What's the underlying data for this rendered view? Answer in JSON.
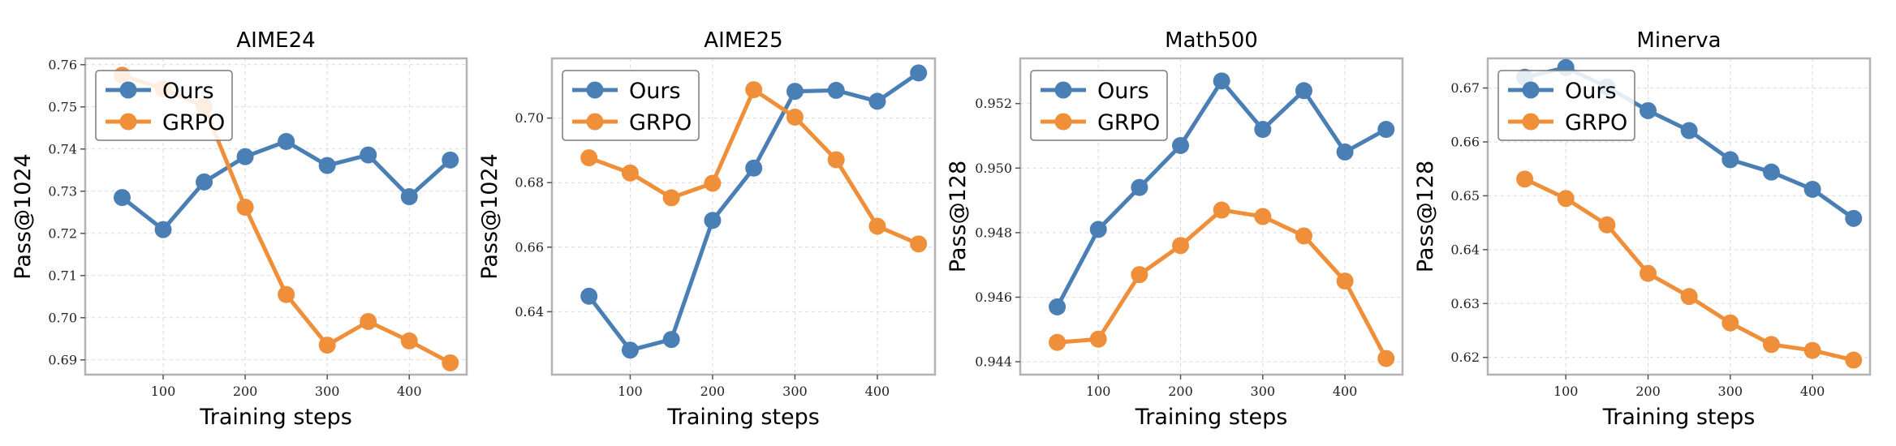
{
  "chart_data": [
    {
      "type": "line",
      "title": "AIME24",
      "xlabel": "Training steps",
      "ylabel": "Pass@1024",
      "x": [
        50,
        100,
        150,
        200,
        250,
        300,
        350,
        400,
        450
      ],
      "xlim": [
        5,
        470
      ],
      "ylim": [
        0.6865,
        0.7615
      ],
      "xticks": [
        100,
        200,
        300,
        400
      ],
      "yticks": [
        0.69,
        0.7,
        0.71,
        0.72,
        0.73,
        0.74,
        0.75,
        0.76
      ],
      "xtick_labels": [
        "100",
        "200",
        "300",
        "400"
      ],
      "ytick_labels": [
        "0.69",
        "0.70",
        "0.71",
        "0.72",
        "0.73",
        "0.74",
        "0.75",
        "0.76"
      ],
      "grid": true,
      "legend_position": "top-left",
      "series": [
        {
          "name": "Ours",
          "color": "#4a7fb5",
          "values": [
            0.7285,
            0.7209,
            0.7322,
            0.7382,
            0.7418,
            0.7361,
            0.7386,
            0.7287,
            0.7374
          ]
        },
        {
          "name": "GRPO",
          "color": "#ef8f3a",
          "values": [
            0.7575,
            0.7543,
            0.7501,
            0.7262,
            0.7055,
            0.6935,
            0.6991,
            0.6945,
            0.6893
          ]
        }
      ]
    },
    {
      "type": "line",
      "title": "AIME25",
      "xlabel": "Training steps",
      "ylabel": "Pass@1024",
      "x": [
        50,
        100,
        150,
        200,
        250,
        300,
        350,
        400,
        450
      ],
      "xlim": [
        5,
        470
      ],
      "ylim": [
        0.6205,
        0.7185
      ],
      "xticks": [
        100,
        200,
        300,
        400
      ],
      "yticks": [
        0.64,
        0.66,
        0.68,
        0.7
      ],
      "xtick_labels": [
        "100",
        "200",
        "300",
        "400"
      ],
      "ytick_labels": [
        "0.64",
        "0.66",
        "0.68",
        "0.70"
      ],
      "grid": true,
      "legend_position": "top-left",
      "series": [
        {
          "name": "Ours",
          "color": "#4a7fb5",
          "values": [
            0.6448,
            0.6281,
            0.6314,
            0.6683,
            0.6845,
            0.7083,
            0.7086,
            0.7052,
            0.714
          ]
        },
        {
          "name": "GRPO",
          "color": "#ef8f3a",
          "values": [
            0.6877,
            0.683,
            0.6753,
            0.6798,
            0.7088,
            0.7003,
            0.6871,
            0.6665,
            0.661
          ]
        }
      ]
    },
    {
      "type": "line",
      "title": "Math500",
      "xlabel": "Training steps",
      "ylabel": "Pass@128",
      "x": [
        50,
        100,
        150,
        200,
        250,
        300,
        350,
        400,
        450
      ],
      "xlim": [
        5,
        470
      ],
      "ylim": [
        0.9436,
        0.9534
      ],
      "xticks": [
        100,
        200,
        300,
        400
      ],
      "yticks": [
        0.944,
        0.946,
        0.948,
        0.95,
        0.952
      ],
      "xtick_labels": [
        "100",
        "200",
        "300",
        "400"
      ],
      "ytick_labels": [
        "0.944",
        "0.946",
        "0.948",
        "0.950",
        "0.952"
      ],
      "grid": true,
      "legend_position": "top-left",
      "series": [
        {
          "name": "Ours",
          "color": "#4a7fb5",
          "values": [
            0.9457,
            0.9481,
            0.9494,
            0.9507,
            0.9527,
            0.9512,
            0.9524,
            0.9505,
            0.9512
          ]
        },
        {
          "name": "GRPO",
          "color": "#ef8f3a",
          "values": [
            0.9446,
            0.9447,
            0.9467,
            0.9476,
            0.9487,
            0.9485,
            0.9479,
            0.9465,
            0.9441
          ]
        }
      ]
    },
    {
      "type": "line",
      "title": "Minerva",
      "xlabel": "Training steps",
      "ylabel": "Pass@128",
      "x": [
        50,
        100,
        150,
        200,
        250,
        300,
        350,
        400,
        450
      ],
      "xlim": [
        5,
        470
      ],
      "ylim": [
        0.6168,
        0.6755
      ],
      "xticks": [
        100,
        200,
        300,
        400
      ],
      "yticks": [
        0.62,
        0.63,
        0.64,
        0.65,
        0.66,
        0.67
      ],
      "xtick_labels": [
        "100",
        "200",
        "300",
        "400"
      ],
      "ytick_labels": [
        "0.62",
        "0.63",
        "0.64",
        "0.65",
        "0.66",
        "0.67"
      ],
      "grid": true,
      "legend_position": "top-left",
      "series": [
        {
          "name": "Ours",
          "color": "#4a7fb5",
          "values": [
            0.672,
            0.6738,
            0.6702,
            0.6658,
            0.6621,
            0.6567,
            0.6544,
            0.6512,
            0.6458
          ]
        },
        {
          "name": "GRPO",
          "color": "#ef8f3a",
          "values": [
            0.6531,
            0.6495,
            0.6446,
            0.6356,
            0.6313,
            0.6264,
            0.6224,
            0.6213,
            0.6195
          ]
        }
      ]
    }
  ]
}
